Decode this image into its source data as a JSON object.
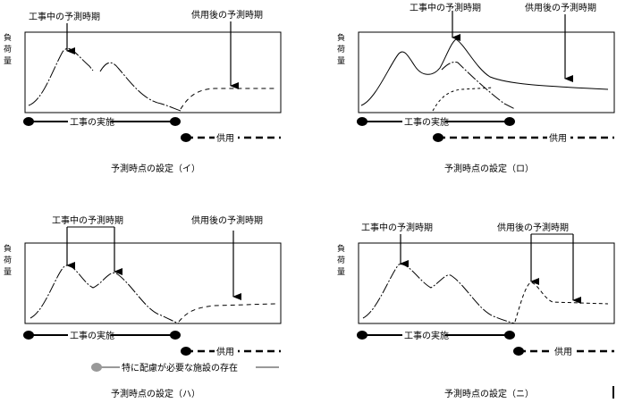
{
  "y_axis_label": [
    "負",
    "荷",
    "量"
  ],
  "legend_construction": "工事の実施",
  "legend_operation": "供用",
  "during_construction_label": "工事中の予測時期",
  "after_operation_label": "供用後の予測時期",
  "special_facility_label": "特に配慮が必要な施設の存在",
  "panels": [
    {
      "id": "i",
      "caption": "予測時点の設定（イ）"
    },
    {
      "id": "ro",
      "caption": "予測時点の設定（ロ）"
    },
    {
      "id": "ha",
      "caption": "予測時点の設定（ハ）"
    },
    {
      "id": "ni",
      "caption": "予測時点の設定（ニ）"
    }
  ],
  "colors": {
    "line": "#000000",
    "special": "#999999"
  }
}
